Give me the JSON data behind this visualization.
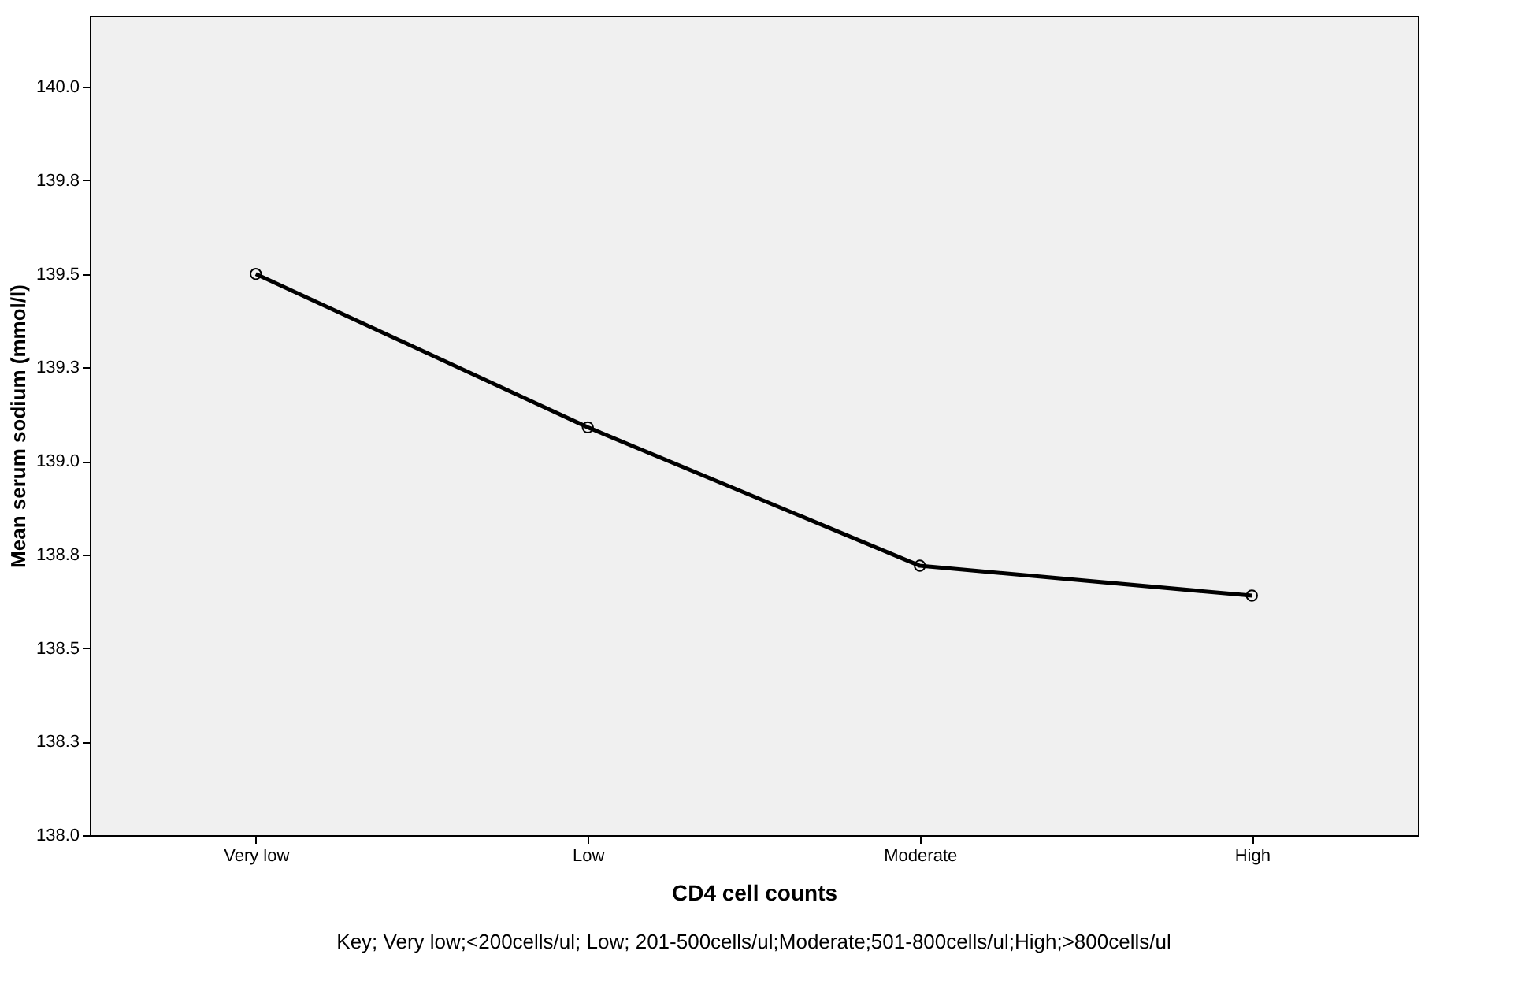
{
  "chart_data": {
    "type": "line",
    "xlabel": "CD4 cell counts",
    "ylabel": "Mean serum sodium (mmol/l)",
    "categories": [
      "Very low",
      "Low",
      "Moderate",
      "High"
    ],
    "series": [
      {
        "color": "#000000",
        "values": [
          139.5,
          139.09,
          138.72,
          138.64
        ]
      }
    ],
    "ylim": [
      138.0,
      140.19
    ],
    "yticks": [
      {
        "value": 138.0,
        "label": "138.0"
      },
      {
        "value": 138.25,
        "label": "138.3"
      },
      {
        "value": 138.5,
        "label": "138.5"
      },
      {
        "value": 138.75,
        "label": "138.8"
      },
      {
        "value": 139.0,
        "label": "139.0"
      },
      {
        "value": 139.25,
        "label": "139.3"
      },
      {
        "value": 139.5,
        "label": "139.5"
      },
      {
        "value": 139.75,
        "label": "139.8"
      },
      {
        "value": 140.0,
        "label": "140.0"
      }
    ],
    "marker": "circle",
    "line_style": "solid",
    "grid": false,
    "annotations": [
      "Key; Very low;<200cells/ul; Low; 201-500cells/ul;Moderate;501-800cells/ul;High;>800cells/ul"
    ]
  }
}
